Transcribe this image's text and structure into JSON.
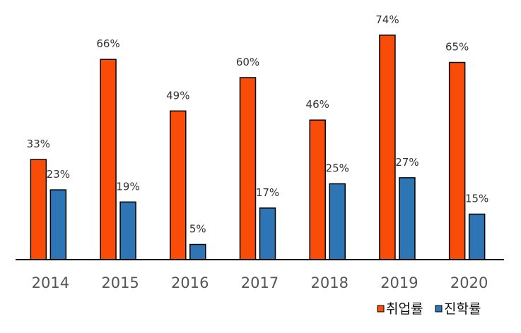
{
  "chart_data": {
    "type": "bar",
    "categories": [
      "2014",
      "2015",
      "2016",
      "2017",
      "2018",
      "2019",
      "2020"
    ],
    "series": [
      {
        "name": "취업률",
        "values": [
          33,
          66,
          49,
          60,
          46,
          74,
          65
        ],
        "color": "#F94C08"
      },
      {
        "name": "진학률",
        "values": [
          23,
          19,
          5,
          17,
          25,
          27,
          15
        ],
        "color": "#2E75B6"
      }
    ],
    "value_suffix": "%",
    "data_labels": true,
    "legend_position": "bottom-right",
    "grid": false,
    "ylim": [
      0,
      80
    ]
  }
}
